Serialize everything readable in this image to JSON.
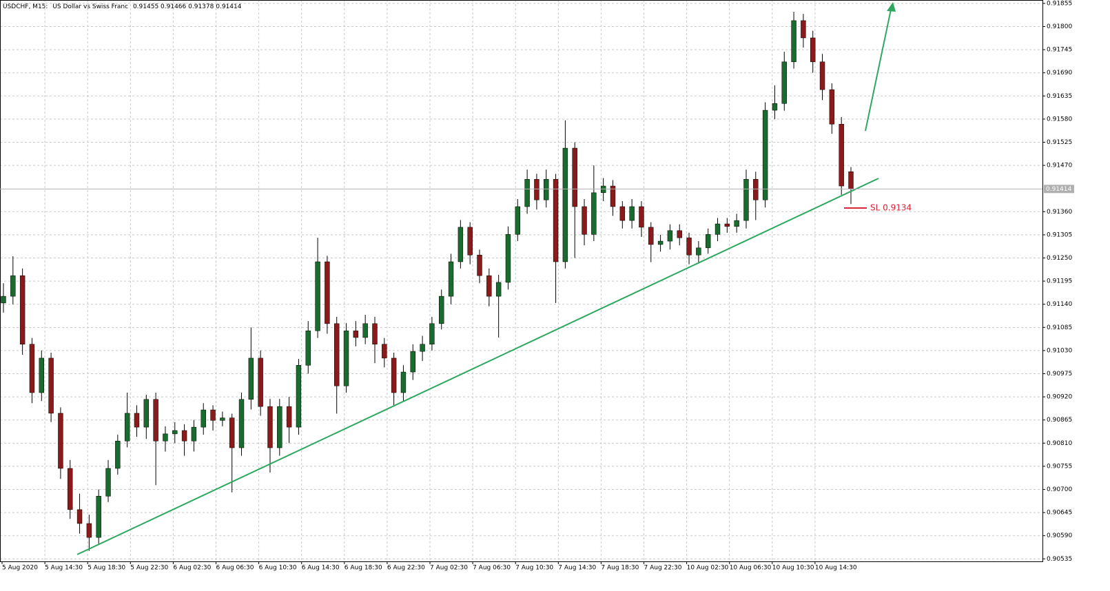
{
  "chart_data": {
    "type": "candlestick",
    "title": "USDCHF, M15:",
    "subtitle": "US Dollar vs Swiss Franc",
    "header_ohlc": [
      0.91455,
      0.91466,
      0.91378,
      0.91414
    ],
    "up_color": "#1a6b2e",
    "down_color": "#8b1a1a",
    "wick_color": "#000000",
    "grid": true,
    "ylim": [
      0.90529,
      0.91863
    ],
    "yticks": [
      0.90535,
      {
        "value": 0.9059,
        "label": "0.90590"
      },
      0.90645,
      {
        "value": 0.907,
        "label": "0.90700"
      },
      0.90755,
      {
        "value": 0.9081,
        "label": "0.90810"
      },
      0.90865,
      {
        "value": 0.9092,
        "label": "0.90920"
      },
      0.90975,
      {
        "value": 0.9103,
        "label": "0.91030"
      },
      0.91085,
      {
        "value": 0.9114,
        "label": "0.91140"
      },
      0.91195,
      {
        "value": 0.9125,
        "label": "0.91250"
      },
      0.91305,
      {
        "value": 0.9136,
        "label": "0.91360"
      },
      {
        "value": 0.9147,
        "label": "0.91470"
      },
      0.91525,
      {
        "value": 0.9158,
        "label": "0.91580"
      },
      0.91635,
      {
        "value": 0.9169,
        "label": "0.91690"
      },
      0.91745,
      {
        "value": 0.918,
        "label": "0.91800"
      },
      0.91855
    ],
    "current_price": 0.91414,
    "x_labels": [
      "5 Aug 2020",
      "5 Aug 14:30",
      "5 Aug 18:30",
      "5 Aug 22:30",
      "6 Aug 02:30",
      "6 Aug 06:30",
      "6 Aug 10:30",
      "6 Aug 14:30",
      "6 Aug 18:30",
      "6 Aug 22:30",
      "7 Aug 02:30",
      "7 Aug 06:30",
      "7 Aug 10:30",
      "7 Aug 14:30",
      "7 Aug 18:30",
      "7 Aug 22:30",
      "10 Aug 02:30",
      "10 Aug 06:30",
      "10 Aug 10:30",
      "10 Aug 14:30"
    ],
    "annotation": "SL 0.9134",
    "candles": [
      [
        0.91143,
        0.9119,
        0.9112,
        0.91159
      ],
      [
        0.91159,
        0.91254,
        0.9114,
        0.91208
      ],
      [
        0.91208,
        0.91225,
        0.9102,
        0.91045
      ],
      [
        0.91045,
        0.9106,
        0.90905,
        0.9093
      ],
      [
        0.9093,
        0.9103,
        0.9091,
        0.91012
      ],
      [
        0.91012,
        0.91025,
        0.9086,
        0.90881
      ],
      [
        0.90881,
        0.90895,
        0.90725,
        0.9075
      ],
      [
        0.9075,
        0.9077,
        0.9063,
        0.90652
      ],
      [
        0.90652,
        0.9069,
        0.90595,
        0.90619
      ],
      [
        0.90619,
        0.9064,
        0.90554,
        0.90586
      ],
      [
        0.90586,
        0.907,
        0.9057,
        0.90684
      ],
      [
        0.90684,
        0.9077,
        0.9067,
        0.9075
      ],
      [
        0.9075,
        0.9083,
        0.90735,
        0.90815
      ],
      [
        0.90815,
        0.9093,
        0.908,
        0.90881
      ],
      [
        0.90881,
        0.909,
        0.90825,
        0.90848
      ],
      [
        0.90848,
        0.90925,
        0.9082,
        0.90914
      ],
      [
        0.90914,
        0.9093,
        0.9071,
        0.90815
      ],
      [
        0.90815,
        0.9085,
        0.9079,
        0.90832
      ],
      [
        0.90832,
        0.9086,
        0.9081,
        0.9084
      ],
      [
        0.9084,
        0.90855,
        0.9078,
        0.90815
      ],
      [
        0.90815,
        0.90865,
        0.9079,
        0.90848
      ],
      [
        0.90848,
        0.90905,
        0.9083,
        0.90889
      ],
      [
        0.90889,
        0.909,
        0.9084,
        0.90864
      ],
      [
        0.90864,
        0.90885,
        0.9085,
        0.9087
      ],
      [
        0.9087,
        0.9088,
        0.90693,
        0.90799
      ],
      [
        0.90799,
        0.9093,
        0.9078,
        0.90914
      ],
      [
        0.90914,
        0.91085,
        0.9089,
        0.91012
      ],
      [
        0.91012,
        0.9103,
        0.90875,
        0.90897
      ],
      [
        0.90897,
        0.90915,
        0.9074,
        0.90799
      ],
      [
        0.90799,
        0.90915,
        0.9078,
        0.90897
      ],
      [
        0.90897,
        0.9092,
        0.9081,
        0.90848
      ],
      [
        0.90848,
        0.9101,
        0.9083,
        0.90995
      ],
      [
        0.90995,
        0.911,
        0.90975,
        0.91077
      ],
      [
        0.91077,
        0.91298,
        0.9106,
        0.91241
      ],
      [
        0.91241,
        0.91255,
        0.9107,
        0.91094
      ],
      [
        0.91094,
        0.9111,
        0.9088,
        0.90946
      ],
      [
        0.90946,
        0.91095,
        0.9093,
        0.91077
      ],
      [
        0.91077,
        0.911,
        0.9104,
        0.91061
      ],
      [
        0.91061,
        0.91115,
        0.91045,
        0.91094
      ],
      [
        0.91094,
        0.9111,
        0.91,
        0.91045
      ],
      [
        0.91045,
        0.9106,
        0.9099,
        0.91012
      ],
      [
        0.91012,
        0.91025,
        0.909,
        0.9093
      ],
      [
        0.9093,
        0.90995,
        0.9091,
        0.90979
      ],
      [
        0.90979,
        0.91045,
        0.9096,
        0.91028
      ],
      [
        0.91028,
        0.91065,
        0.91005,
        0.91045
      ],
      [
        0.91045,
        0.9111,
        0.9103,
        0.91094
      ],
      [
        0.91094,
        0.91175,
        0.9108,
        0.91159
      ],
      [
        0.91159,
        0.9126,
        0.9114,
        0.91241
      ],
      [
        0.91241,
        0.9134,
        0.91225,
        0.91323
      ],
      [
        0.91323,
        0.91335,
        0.91235,
        0.91257
      ],
      [
        0.91257,
        0.9127,
        0.9119,
        0.91208
      ],
      [
        0.91208,
        0.91225,
        0.91135,
        0.91159
      ],
      [
        0.91159,
        0.9121,
        0.91061,
        0.91192
      ],
      [
        0.91192,
        0.91325,
        0.91175,
        0.91306
      ],
      [
        0.91306,
        0.9139,
        0.9129,
        0.91372
      ],
      [
        0.91372,
        0.9146,
        0.91355,
        0.91437
      ],
      [
        0.91437,
        0.9145,
        0.91365,
        0.91388
      ],
      [
        0.91388,
        0.9146,
        0.9137,
        0.91437
      ],
      [
        0.91437,
        0.9145,
        0.91143,
        0.91241
      ],
      [
        0.91241,
        0.91577,
        0.91225,
        0.91511
      ],
      [
        0.91511,
        0.91525,
        0.9125,
        0.91372
      ],
      [
        0.91372,
        0.9139,
        0.9128,
        0.91306
      ],
      [
        0.91306,
        0.9147,
        0.9129,
        0.91405
      ],
      [
        0.91405,
        0.9144,
        0.91385,
        0.91421
      ],
      [
        0.91421,
        0.91435,
        0.9135,
        0.91372
      ],
      [
        0.91372,
        0.91385,
        0.9132,
        0.91339
      ],
      [
        0.91339,
        0.9139,
        0.9132,
        0.91372
      ],
      [
        0.91372,
        0.91385,
        0.913,
        0.91323
      ],
      [
        0.91323,
        0.91335,
        0.9124,
        0.91282
      ],
      [
        0.91282,
        0.91305,
        0.91265,
        0.9129
      ],
      [
        0.9129,
        0.9133,
        0.9127,
        0.91315
      ],
      [
        0.91315,
        0.9133,
        0.9128,
        0.91298
      ],
      [
        0.91298,
        0.9131,
        0.91235,
        0.91257
      ],
      [
        0.91257,
        0.9129,
        0.9124,
        0.91274
      ],
      [
        0.91274,
        0.9132,
        0.9126,
        0.91306
      ],
      [
        0.91306,
        0.91345,
        0.9129,
        0.91331
      ],
      [
        0.91331,
        0.91345,
        0.9131,
        0.91325
      ],
      [
        0.91325,
        0.91355,
        0.9131,
        0.91339
      ],
      [
        0.91339,
        0.9146,
        0.9132,
        0.91437
      ],
      [
        0.91437,
        0.91455,
        0.9134,
        0.91388
      ],
      [
        0.91388,
        0.9162,
        0.9137,
        0.91601
      ],
      [
        0.91601,
        0.9166,
        0.9158,
        0.91617
      ],
      [
        0.91617,
        0.9174,
        0.916,
        0.91716
      ],
      [
        0.91716,
        0.91835,
        0.917,
        0.91814
      ],
      [
        0.91814,
        0.9183,
        0.9175,
        0.91773
      ],
      [
        0.91773,
        0.9179,
        0.9169,
        0.91716
      ],
      [
        0.91716,
        0.91735,
        0.91625,
        0.9165
      ],
      [
        0.9165,
        0.91665,
        0.91545,
        0.91568
      ],
      [
        0.91568,
        0.91585,
        0.914,
        0.91421
      ],
      [
        0.91455,
        0.91466,
        0.91378,
        0.91414
      ]
    ]
  }
}
